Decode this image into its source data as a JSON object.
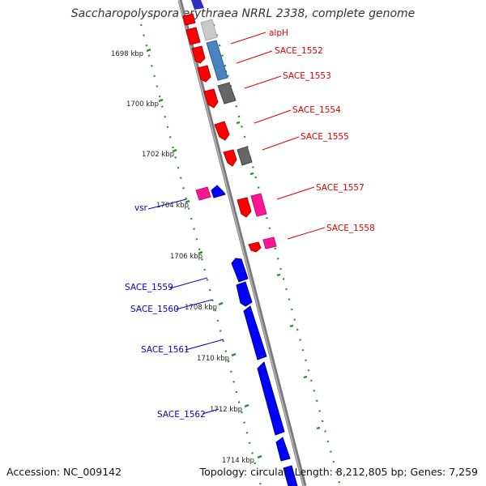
{
  "title": "Saccharopolyspora erythraea NRRL 2338, complete genome",
  "footer": {
    "accession": "Accession: NC_009142",
    "topology": "Topology: circular; Length: 8,212,805 bp; Genes: 7,259"
  },
  "colors": {
    "forward_gene": "#ff0000",
    "reverse_gene": "#0000ff",
    "pink_feature": "#ff1493",
    "grey_feature": "#666666",
    "steelblue_feature": "#4a84c0",
    "backbone": "#808080",
    "tick": "#2e8b2e"
  },
  "kbp_ticks": [
    {
      "label": "1698 kbp"
    },
    {
      "label": "1700 kbp"
    },
    {
      "label": "1702 kbp"
    },
    {
      "label": "1704 kbp"
    },
    {
      "label": "1706 kbp"
    },
    {
      "label": "1708 kbp"
    },
    {
      "label": "1710 kbp"
    },
    {
      "label": "1712 kbp"
    },
    {
      "label": "1714 kbp"
    }
  ],
  "gene_labels_right": [
    {
      "label": "alpH"
    },
    {
      "label": "SACE_1552"
    },
    {
      "label": "SACE_1553"
    },
    {
      "label": "SACE_1554"
    },
    {
      "label": "SACE_1555"
    },
    {
      "label": "SACE_1557"
    },
    {
      "label": "SACE_1558"
    }
  ],
  "gene_labels_left": [
    {
      "label": "vsr"
    },
    {
      "label": "SACE_1559"
    },
    {
      "label": "SACE_1560"
    },
    {
      "label": "SACE_1561"
    },
    {
      "label": "SACE_1562"
    }
  ]
}
